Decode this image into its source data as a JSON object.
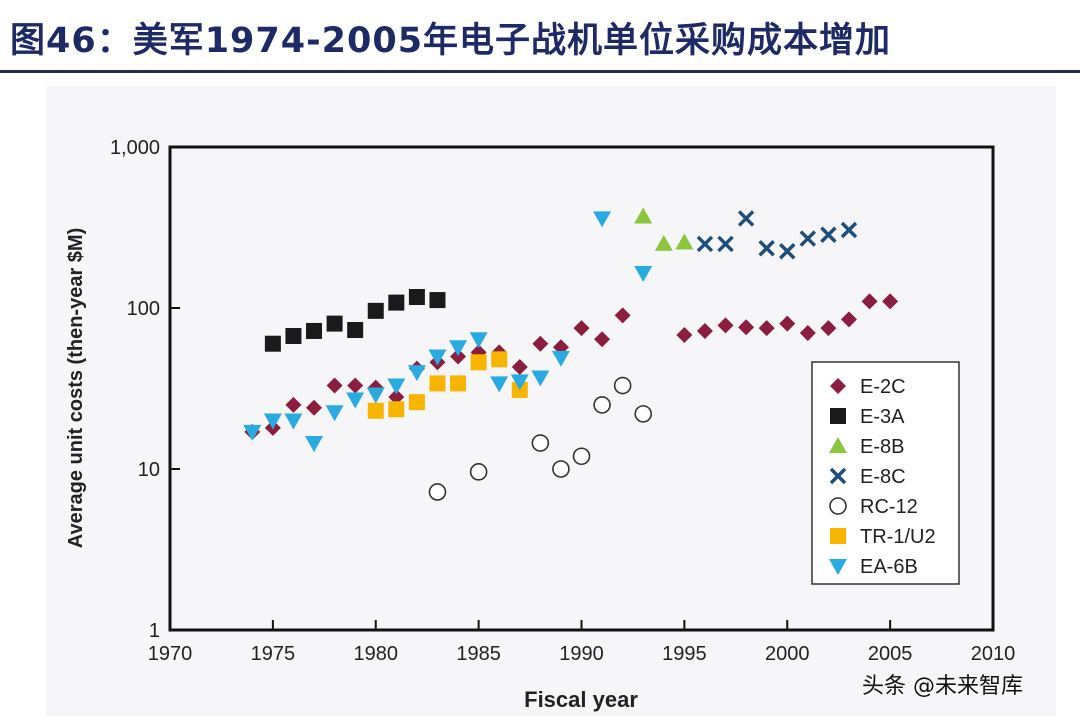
{
  "title": "图46：美军1974-2005年电子战机单位采购成本增加",
  "watermark": {
    "label_top": "未来智库",
    "label": "头条 @未来智库",
    "icon": "wechat-logo-icon"
  },
  "colors": {
    "title": "#1e2a66",
    "E-2C": "#8b1e3f",
    "E-3A": "#1a1a1a",
    "E-8B": "#8cc63f",
    "E-8C": "#1f4e79",
    "RC-12": "#ffffff",
    "TR-1/U2": "#f7b500",
    "EA-6B": "#29abe2"
  },
  "chart_data": {
    "type": "scatter",
    "xlabel": "Fiscal year",
    "ylabel": "Average unit costs (then-year $M)",
    "xlim": [
      1970,
      2010
    ],
    "ylim": [
      1,
      1000
    ],
    "yscale": "log",
    "xticks": [
      "1970",
      "1975",
      "1980",
      "1985",
      "1990",
      "1995",
      "2000",
      "2005",
      "2010"
    ],
    "yticks": [
      "1",
      "10",
      "100",
      "1,000"
    ],
    "grid": false,
    "legend_position": "bottom-right",
    "series": [
      {
        "name": "E-2C",
        "marker": "diamond",
        "x": [
          1974,
          1975,
          1976,
          1977,
          1978,
          1979,
          1980,
          1981,
          1982,
          1983,
          1984,
          1985,
          1986,
          1987,
          1988,
          1989,
          1990,
          1991,
          1992,
          1995,
          1996,
          1997,
          1998,
          1999,
          2000,
          2001,
          2002,
          2003,
          2004,
          2005
        ],
        "y": [
          17,
          18,
          25,
          24,
          33,
          33,
          32,
          28,
          42,
          46,
          50,
          53,
          53,
          43,
          60,
          57,
          75,
          64,
          90,
          68,
          72,
          78,
          76,
          75,
          80,
          70,
          75,
          85,
          110,
          110
        ]
      },
      {
        "name": "E-3A",
        "marker": "square",
        "x": [
          1975,
          1976,
          1977,
          1978,
          1979,
          1980,
          1981,
          1982,
          1983
        ],
        "y": [
          60,
          67,
          72,
          80,
          73,
          96,
          108,
          117,
          112
        ]
      },
      {
        "name": "E-8B",
        "marker": "triangle-up",
        "x": [
          1993,
          1994,
          1995
        ],
        "y": [
          370,
          250,
          255
        ]
      },
      {
        "name": "E-8C",
        "marker": "x",
        "x": [
          1996,
          1997,
          1998,
          1999,
          2000,
          2001,
          2002,
          2003
        ],
        "y": [
          250,
          250,
          360,
          235,
          225,
          270,
          285,
          305
        ]
      },
      {
        "name": "RC-12",
        "marker": "circle-open",
        "x": [
          1983,
          1985,
          1988,
          1989,
          1990,
          1991,
          1992,
          1993
        ],
        "y": [
          7.2,
          9.6,
          14.5,
          10,
          12,
          25,
          33,
          22
        ]
      },
      {
        "name": "TR-1/U2",
        "marker": "square",
        "x": [
          1980,
          1981,
          1982,
          1983,
          1984,
          1985,
          1986,
          1987
        ],
        "y": [
          23,
          23.5,
          26,
          34,
          34,
          46,
          48,
          31
        ]
      },
      {
        "name": "EA-6B",
        "marker": "triangle-down",
        "x": [
          1974,
          1975,
          1976,
          1977,
          1978,
          1979,
          1980,
          1981,
          1982,
          1983,
          1984,
          1985,
          1986,
          1987,
          1988,
          1989,
          1991,
          1993
        ],
        "y": [
          17,
          20,
          20,
          14.5,
          22.5,
          27,
          29,
          33,
          40,
          50,
          57,
          64,
          34,
          35,
          37,
          49,
          360,
          165
        ]
      }
    ]
  }
}
